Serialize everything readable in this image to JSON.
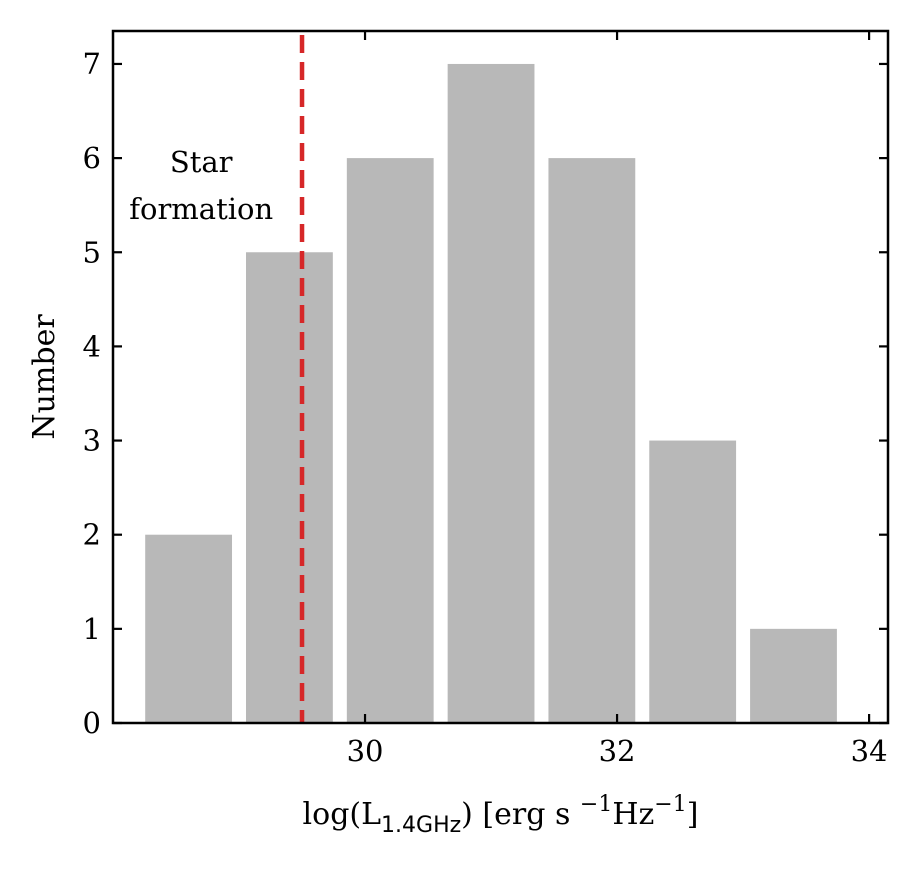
{
  "chart_data": {
    "type": "bar",
    "bins": [
      {
        "x0": 28.2,
        "x1": 29.0,
        "value": 2
      },
      {
        "x0": 29.0,
        "x1": 29.8,
        "value": 5
      },
      {
        "x0": 29.8,
        "x1": 30.6,
        "value": 6
      },
      {
        "x0": 30.6,
        "x1": 31.4,
        "value": 7
      },
      {
        "x0": 31.4,
        "x1": 32.2,
        "value": 6
      },
      {
        "x0": 32.2,
        "x1": 33.0,
        "value": 3
      },
      {
        "x0": 33.0,
        "x1": 33.8,
        "value": 1
      }
    ],
    "values": [
      2,
      5,
      6,
      7,
      6,
      3,
      1
    ],
    "xlim": [
      28.0,
      34.15
    ],
    "ylim": [
      0,
      7.35
    ],
    "xticks": [
      30,
      32,
      34
    ],
    "yticks": [
      0,
      1,
      2,
      3,
      4,
      5,
      6,
      7
    ],
    "xlabel": {
      "prefix": "log(L",
      "subscript": "1.4GHz",
      "middle": ") [erg s ",
      "sup1": "−1",
      "unit2": "Hz",
      "sup2": "−1",
      "suffix": "]"
    },
    "ylabel": "Number",
    "threshold": {
      "x": 29.5,
      "color": "#d62728",
      "style": "dashed"
    },
    "annotation": {
      "line1": "Star",
      "line2": "formation",
      "x": 28.7,
      "y": 5.85
    },
    "bar_color": "#b8b8b8",
    "grid": false
  }
}
